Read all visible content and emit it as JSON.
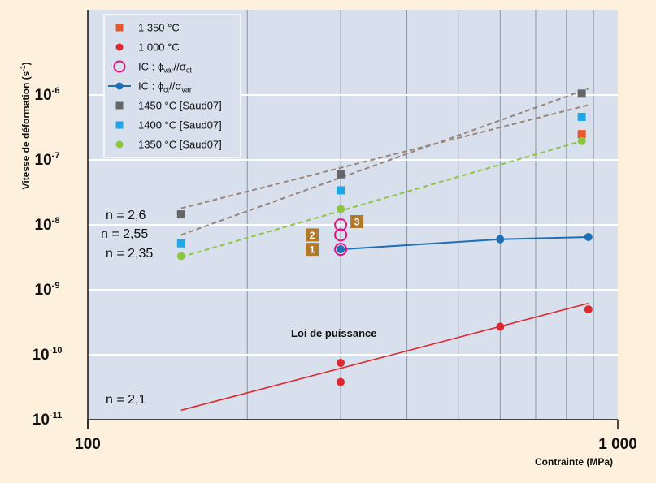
{
  "chart_data": {
    "type": "scatter",
    "xscale": "log",
    "yscale": "log",
    "xlim": [
      100,
      1000
    ],
    "ylim": [
      1e-11,
      3e-06
    ],
    "xlabel": "Contrainte (MPa)",
    "ylabel": "Vitesse de déformation (s-1)",
    "x_ticks": [
      {
        "value": 100,
        "label": "100"
      },
      {
        "value": 1000,
        "label": "1 000"
      }
    ],
    "y_ticks": [
      {
        "value": 1e-11,
        "mantissa": "10",
        "exp": "-11"
      },
      {
        "value": 1e-10,
        "mantissa": "10",
        "exp": "-10"
      },
      {
        "value": 1e-09,
        "mantissa": "10",
        "exp": "-9"
      },
      {
        "value": 1e-08,
        "mantissa": "10",
        "exp": "-8"
      },
      {
        "value": 1e-07,
        "mantissa": "10",
        "exp": "-7"
      },
      {
        "value": 1e-06,
        "mantissa": "10",
        "exp": "-6"
      }
    ],
    "grid": true,
    "legend_position": "top-left",
    "series": [
      {
        "name": "1 350 °C",
        "marker": "square",
        "color": "#e8562a",
        "points": [
          [
            855,
            2.5e-07
          ]
        ]
      },
      {
        "name": "1 000 °C",
        "marker": "circle",
        "color": "#e0262e",
        "points": [
          [
            300,
            7.5e-11
          ],
          [
            300,
            3.8e-11
          ],
          [
            600,
            2.7e-10
          ],
          [
            880,
            5e-10
          ]
        ]
      },
      {
        "name": "IC : ϕvar//σct",
        "marker": "ring",
        "color": "#e0157f",
        "points": [
          [
            300,
            4.2e-09
          ],
          [
            300,
            7e-09
          ],
          [
            300,
            1e-08
          ]
        ]
      },
      {
        "name": "IC : ϕct//σvar",
        "marker": "circle-line",
        "color": "#1e6fb8",
        "points": [
          [
            300,
            4.2e-09
          ],
          [
            600,
            6e-09
          ],
          [
            880,
            6.5e-09
          ]
        ]
      },
      {
        "name": "1450 °C [Saud07]",
        "marker": "square",
        "color": "#666666",
        "points": [
          [
            150,
            1.45e-08
          ],
          [
            300,
            6e-08
          ],
          [
            855,
            1.05e-06
          ]
        ]
      },
      {
        "name": "1400 °C [Saud07]",
        "marker": "square",
        "color": "#1ea7e6",
        "points": [
          [
            150,
            5.2e-09
          ],
          [
            300,
            3.4e-08
          ],
          [
            855,
            4.6e-07
          ]
        ]
      },
      {
        "name": "1350 °C [Saud07]",
        "marker": "circle",
        "color": "#8cc63f",
        "points": [
          [
            150,
            3.3e-09
          ],
          [
            300,
            1.75e-08
          ],
          [
            855,
            1.95e-07
          ]
        ]
      }
    ],
    "fit_lines": [
      {
        "style": "dashed",
        "color": "#9a8478",
        "from": [
          150,
          7e-09
        ],
        "to": [
          880,
          1.25e-06
        ]
      },
      {
        "style": "dashed",
        "color": "#9a8478",
        "from": [
          150,
          1.8e-08
        ],
        "to": [
          880,
          7e-07
        ]
      },
      {
        "style": "dashed",
        "color": "#8cc63f",
        "from": [
          150,
          3.2e-09
        ],
        "to": [
          855,
          1.95e-07
        ]
      },
      {
        "style": "solid",
        "color": "#e0262e",
        "from": [
          150,
          1.4e-11
        ],
        "to": [
          880,
          6.2e-10
        ]
      }
    ],
    "annotations": {
      "n_values": [
        "n = 2,6",
        "n = 2,55",
        "n = 2,35",
        "n = 2,1"
      ],
      "power_law": "Loi de puissance",
      "badges": [
        {
          "label": "1",
          "x": 300,
          "y": 4.2e-09
        },
        {
          "label": "2",
          "x": 300,
          "y": 7e-09
        },
        {
          "label": "3",
          "x": 300,
          "y": 1e-08
        }
      ]
    }
  }
}
